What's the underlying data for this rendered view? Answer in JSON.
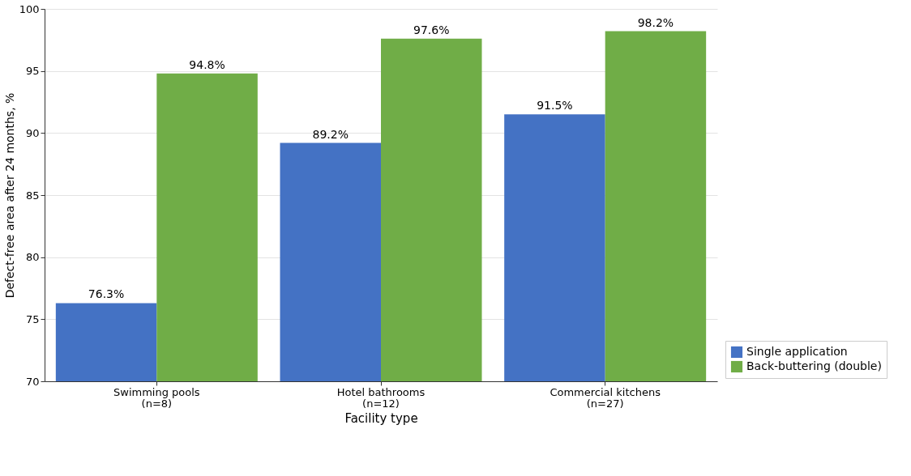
{
  "chart_data": {
    "type": "bar",
    "xlabel": "Facility type",
    "ylabel": "Defect-free area after 24 months, %",
    "categories": [
      "Swimming pools\n(n=8)",
      "Hotel bathrooms\n(n=12)",
      "Commercial kitchens\n(n=27)"
    ],
    "series": [
      {
        "name": "Single application",
        "color": "#4472c4",
        "values": [
          76.3,
          89.2,
          91.5
        ],
        "value_labels": [
          "76.3%",
          "89.2%",
          "91.5%"
        ]
      },
      {
        "name": "Back-buttering (double)",
        "color": "#70ad47",
        "values": [
          94.8,
          97.6,
          98.2
        ],
        "value_labels": [
          "94.8%",
          "97.6%",
          "98.2%"
        ]
      }
    ],
    "ylim": [
      70,
      100
    ],
    "yticks": [
      70,
      75,
      80,
      85,
      90,
      95,
      100
    ],
    "grid": "y",
    "legend": "bottom right"
  }
}
